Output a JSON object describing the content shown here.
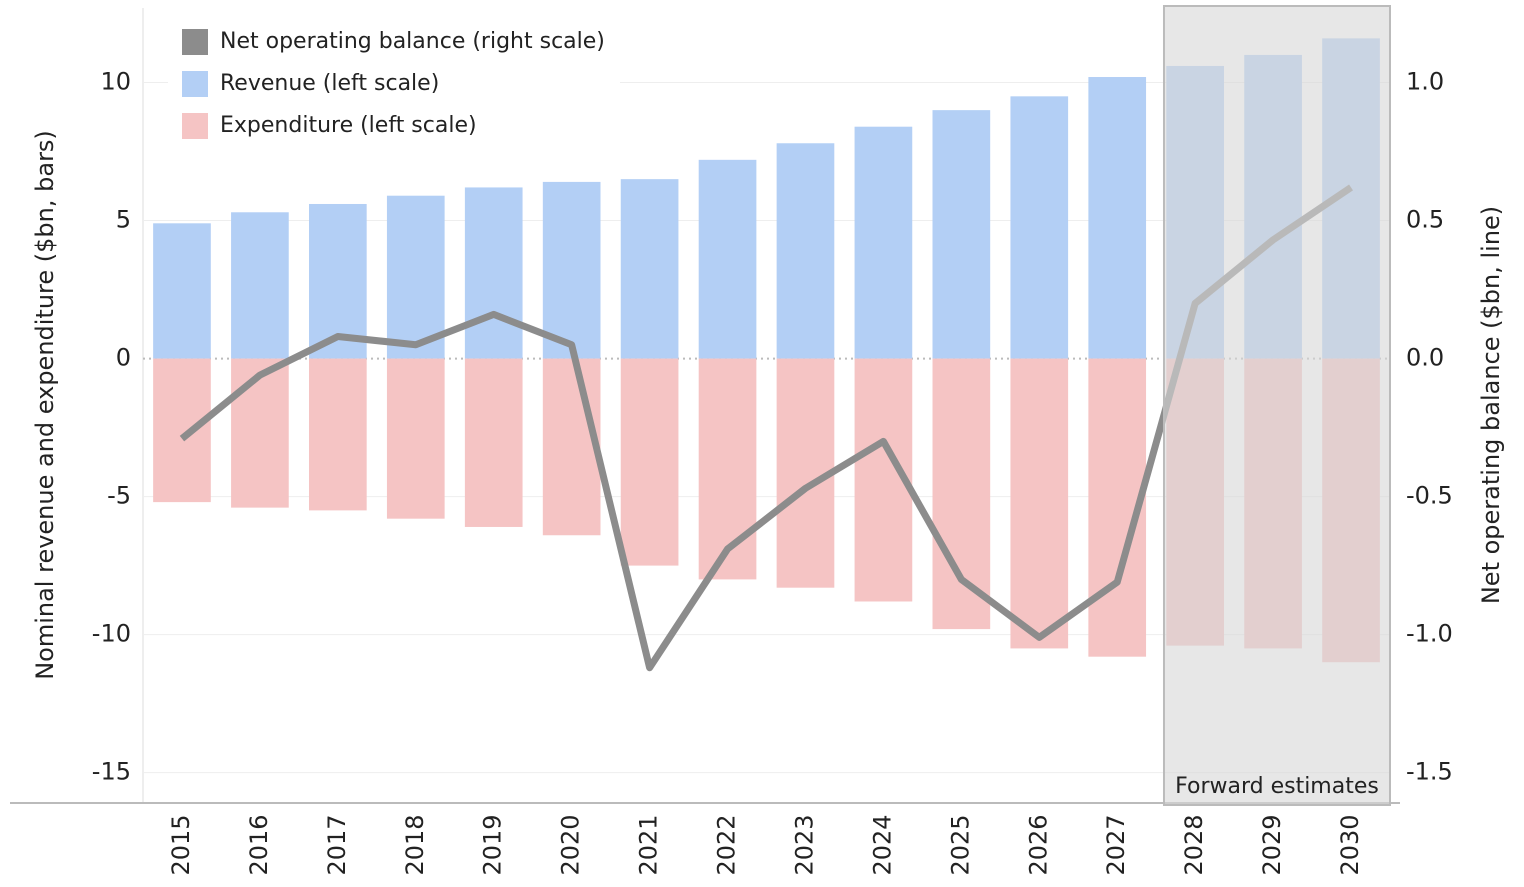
{
  "chart_data": {
    "type": "bar-line",
    "categories": [
      "2015",
      "2016",
      "2017",
      "2018",
      "2019",
      "2020",
      "2021",
      "2022",
      "2023",
      "2024",
      "2025",
      "2026",
      "2027",
      "2028",
      "2029",
      "2030"
    ],
    "series": [
      {
        "name": "Net operating balance (right scale)",
        "type": "line",
        "axis": "y2",
        "color": "#8c8c8c",
        "values": [
          -0.29,
          -0.06,
          0.08,
          0.05,
          0.16,
          0.05,
          -1.12,
          -0.69,
          -0.47,
          -0.3,
          -0.8,
          -1.01,
          -0.81,
          0.2,
          0.43,
          0.62
        ]
      },
      {
        "name": "Revenue (left scale)",
        "type": "bar",
        "color": "#b3cff5",
        "values": [
          4.9,
          5.3,
          5.6,
          5.9,
          6.2,
          6.4,
          6.5,
          7.2,
          7.8,
          8.4,
          9.0,
          9.5,
          10.2,
          10.6,
          11.0,
          11.6
        ]
      },
      {
        "name": "Expenditure (left scale)",
        "type": "bar",
        "color": "#f5c4c4",
        "values": [
          -5.2,
          -5.4,
          -5.5,
          -5.8,
          -6.1,
          -6.4,
          -7.5,
          -8.0,
          -8.3,
          -8.8,
          -9.8,
          -10.5,
          -10.8,
          -10.4,
          -10.5,
          -11.0
        ]
      }
    ],
    "y_label": "Nominal revenue and expenditure ($bn, bars)",
    "y2_label": "Net operating balance ($bn, line)",
    "ylim": [
      -16.1,
      12.7
    ],
    "yticks": [
      -15,
      -10,
      -5,
      0,
      5,
      10
    ],
    "y2lim": [
      -1.61,
      1.27
    ],
    "y2ticks": [
      {
        "value": -1.5,
        "label": "-1.5"
      },
      {
        "value": -1,
        "label": "-1.0"
      },
      -0.5,
      {
        "value": 0,
        "label": "0.0"
      },
      0.5,
      {
        "value": 1,
        "label": "1.0"
      }
    ],
    "grid": true,
    "legend": "top-left",
    "annotation": {
      "text": "Forward estimates",
      "from": "2028"
    }
  }
}
